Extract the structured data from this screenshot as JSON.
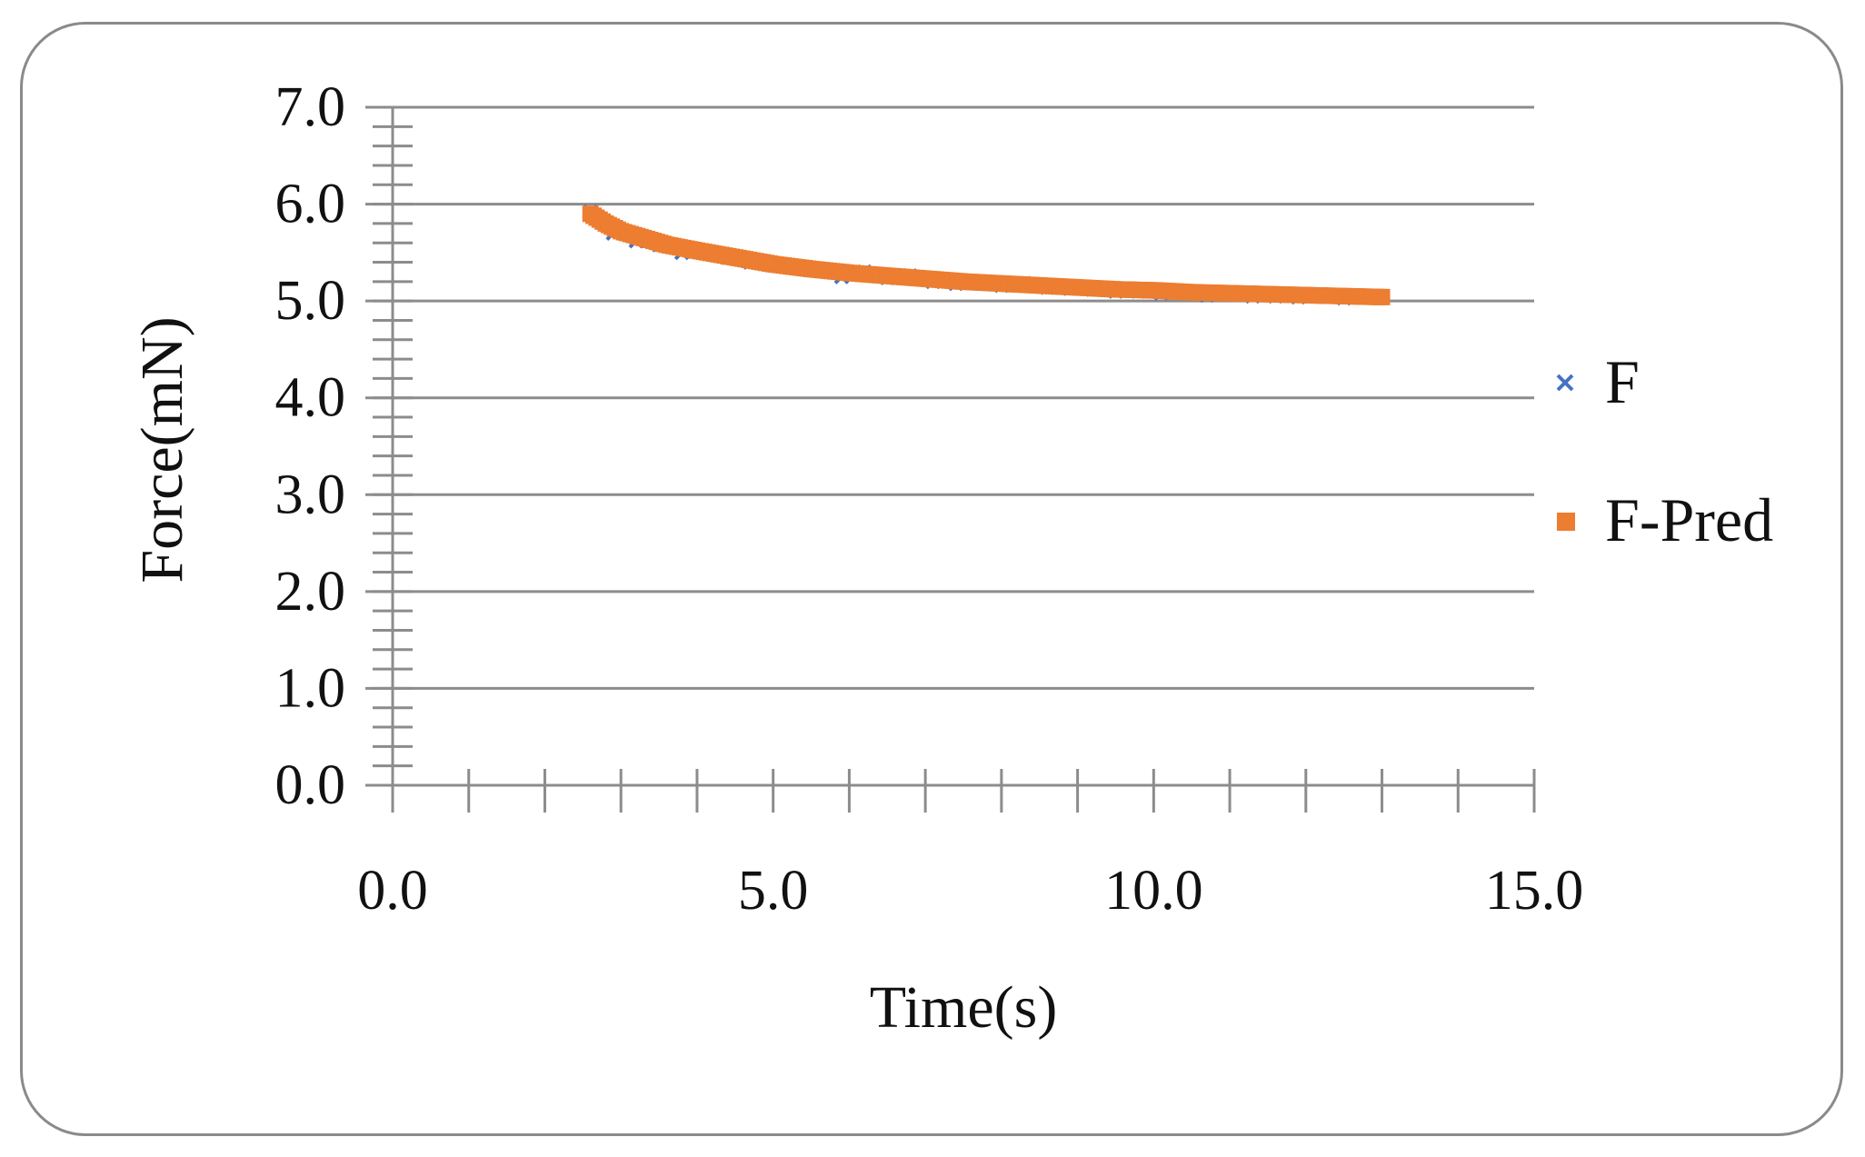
{
  "chart_data": {
    "type": "scatter",
    "xlabel": "Time(s)",
    "ylabel": "Force(mN)",
    "xlim": [
      0,
      15
    ],
    "ylim": [
      0,
      7
    ],
    "x_ticks": [
      "0.0",
      "5.0",
      "10.0",
      "15.0"
    ],
    "y_ticks": [
      "0.0",
      "1.0",
      "2.0",
      "3.0",
      "4.0",
      "5.0",
      "6.0",
      "7.0"
    ],
    "grid": "horizontal",
    "legend_position": "right",
    "series": [
      {
        "name": "F",
        "marker": "x",
        "color": "#4472C4",
        "x": [
          2.6,
          2.9,
          3.2,
          3.5,
          3.8,
          4.1,
          4.4,
          4.7,
          5.0,
          5.3,
          5.6,
          5.9,
          6.2,
          6.5,
          6.8,
          7.1,
          7.4,
          7.7,
          8.0,
          8.3,
          8.6,
          8.9,
          9.2,
          9.5,
          9.8,
          10.1,
          10.4,
          10.7,
          11.0,
          11.3,
          11.6,
          11.9,
          12.2,
          12.5,
          12.8
        ],
        "y": [
          5.92,
          5.7,
          5.62,
          5.58,
          5.5,
          5.5,
          5.45,
          5.4,
          5.38,
          5.35,
          5.33,
          5.25,
          5.3,
          5.24,
          5.26,
          5.2,
          5.18,
          5.2,
          5.16,
          5.18,
          5.14,
          5.13,
          5.12,
          5.1,
          5.1,
          5.08,
          5.1,
          5.06,
          5.07,
          5.05,
          5.05,
          5.04,
          5.06,
          5.03,
          5.04
        ]
      },
      {
        "name": "F-Pred",
        "marker": "square",
        "color": "#ED7D31",
        "x": [
          2.6,
          2.8,
          3.0,
          3.3,
          3.6,
          4.0,
          4.5,
          5.0,
          5.5,
          6.0,
          6.5,
          7.0,
          7.5,
          8.0,
          8.5,
          9.0,
          9.5,
          10.0,
          10.5,
          11.0,
          11.5,
          12.0,
          12.5,
          13.0
        ],
        "y": [
          5.9,
          5.8,
          5.72,
          5.65,
          5.58,
          5.52,
          5.45,
          5.38,
          5.33,
          5.29,
          5.26,
          5.23,
          5.2,
          5.18,
          5.16,
          5.14,
          5.12,
          5.11,
          5.09,
          5.08,
          5.07,
          5.06,
          5.05,
          5.04
        ]
      }
    ]
  }
}
